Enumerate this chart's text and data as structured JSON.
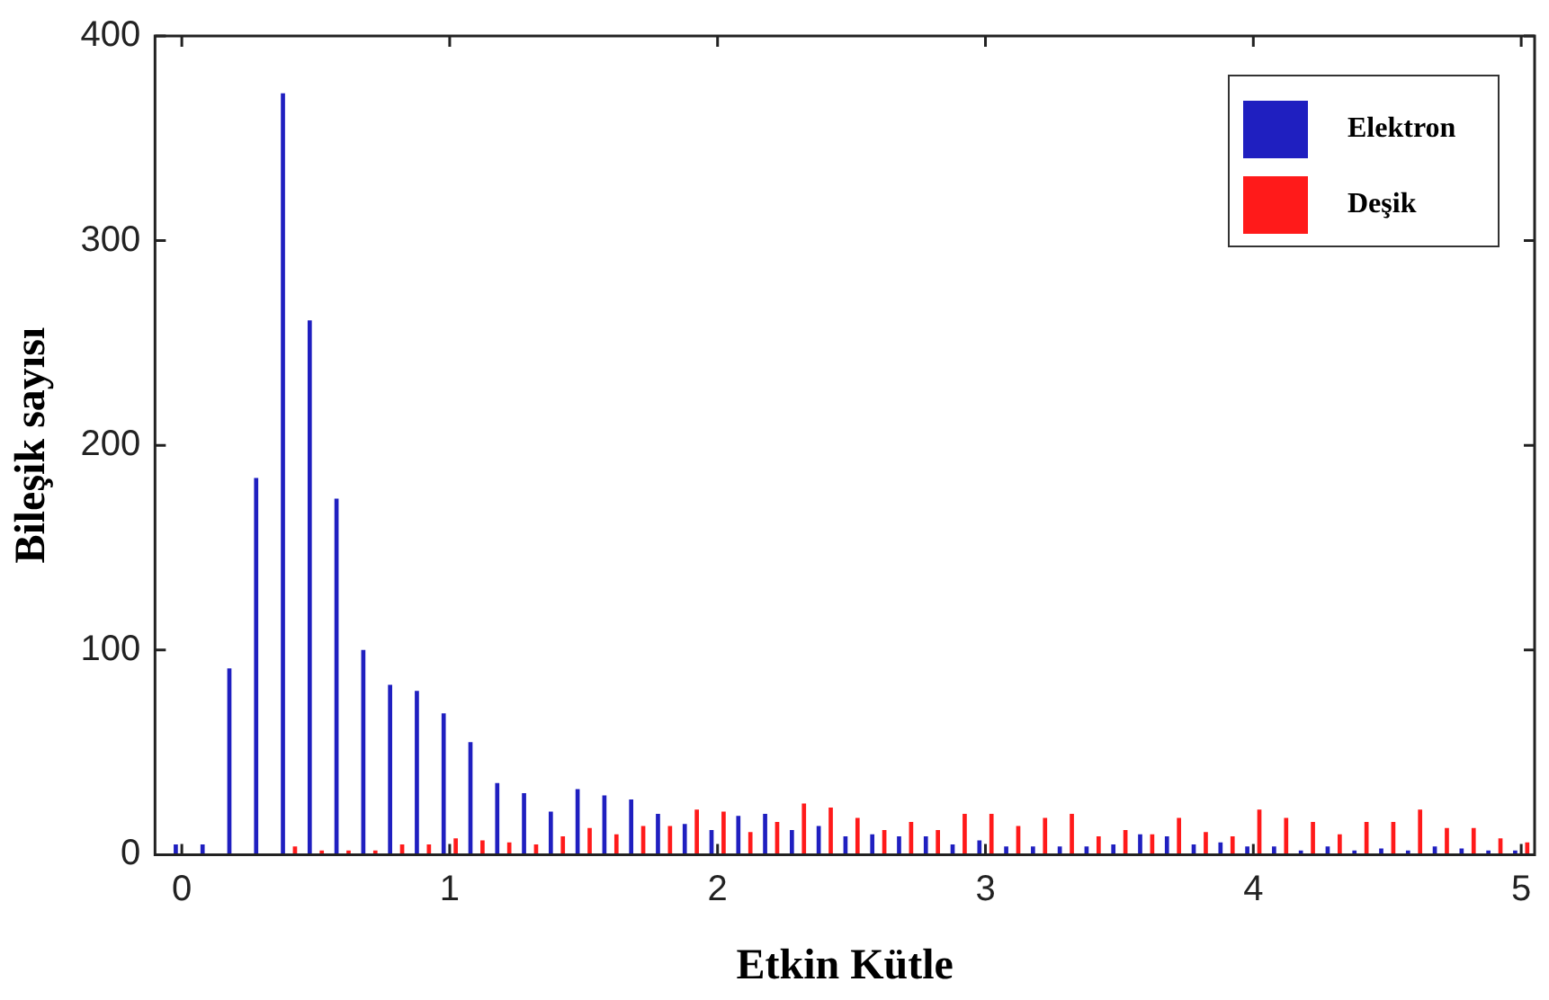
{
  "chart_data": {
    "type": "bar",
    "xlabel": "Etkin Kütle",
    "ylabel": "Bileşik sayısı",
    "x": [
      0,
      0.1,
      0.2,
      0.3,
      0.4,
      0.5,
      0.6,
      0.7,
      0.8,
      0.9,
      1,
      1.1,
      1.2,
      1.3,
      1.4,
      1.5,
      1.6,
      1.7,
      1.8,
      1.9,
      2,
      2.1,
      2.2,
      2.3,
      2.4,
      2.5,
      2.6,
      2.7,
      2.8,
      2.9,
      3,
      3.1,
      3.2,
      3.3,
      3.4,
      3.5,
      3.6,
      3.7,
      3.8,
      3.9,
      4,
      4.1,
      4.2,
      4.3,
      4.4,
      4.5,
      4.6,
      4.7,
      4.8,
      4.9,
      5
    ],
    "series": [
      {
        "name": "Elektron",
        "color": "#1f1fc0",
        "values": [
          5,
          5,
          91,
          184,
          372,
          261,
          174,
          100,
          83,
          80,
          69,
          55,
          35,
          30,
          21,
          32,
          29,
          27,
          20,
          15,
          12,
          19,
          20,
          12,
          14,
          9,
          10,
          9,
          9,
          5,
          7,
          4,
          4,
          4,
          4,
          5,
          10,
          9,
          5,
          6,
          4,
          4,
          2,
          4,
          2,
          3,
          2,
          4,
          3,
          2,
          2
        ]
      },
      {
        "name": "Deşik",
        "color": "#ff1a1a",
        "values": [
          0,
          0,
          0,
          0,
          4,
          2,
          2,
          2,
          5,
          5,
          8,
          7,
          6,
          5,
          9,
          13,
          10,
          14,
          14,
          22,
          21,
          11,
          16,
          25,
          23,
          18,
          12,
          16,
          12,
          20,
          20,
          14,
          18,
          20,
          9,
          12,
          10,
          18,
          11,
          9,
          22,
          18,
          16,
          10,
          16,
          16,
          22,
          13,
          13,
          8,
          6
        ]
      }
    ],
    "xlim": [
      -0.1,
      5.05
    ],
    "xticks": [
      0,
      1,
      2,
      3,
      4,
      5
    ],
    "ylim": [
      0,
      400
    ],
    "yticks": [
      0,
      100,
      200,
      300,
      400
    ],
    "grid": false,
    "legend": "top right"
  }
}
